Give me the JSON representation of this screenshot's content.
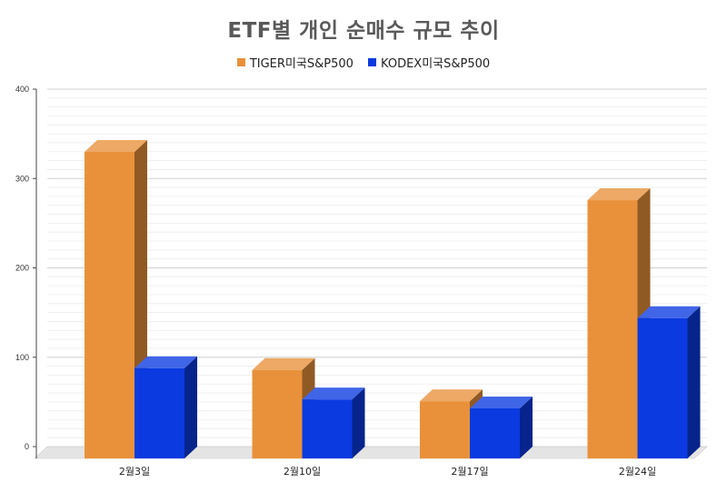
{
  "chart_data": {
    "type": "bar",
    "title": "ETF별 개인 순매수 규모 추이",
    "categories": [
      "2월3일",
      "2월10일",
      "2월17일",
      "2월24일"
    ],
    "series": [
      {
        "name": "TIGER미국S&P500",
        "values": [
          343,
          99,
          64,
          289
        ],
        "color": "#E8913A"
      },
      {
        "name": "KODEX미국S&P500",
        "values": [
          101,
          66,
          56,
          157
        ],
        "color": "#0A3AE0"
      }
    ],
    "yticks": [
      0,
      100,
      200,
      300,
      400
    ],
    "ylim": [
      0,
      400
    ],
    "grid": true,
    "legend": "top"
  }
}
